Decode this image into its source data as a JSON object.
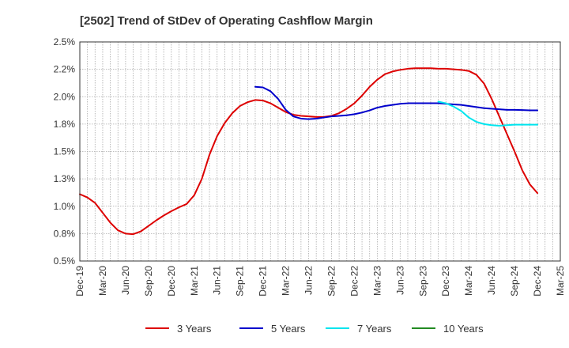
{
  "chart_data": {
    "type": "line",
    "title": "[2502]  Trend of StDev of Operating Cashflow Margin",
    "xlabel": "",
    "ylabel": "",
    "ylim": [
      0.5,
      2.5
    ],
    "y_ticks": [
      0.5,
      0.75,
      1.0,
      1.25,
      1.5,
      1.75,
      2.0,
      2.25,
      2.5
    ],
    "y_tick_labels": [
      "0.5%",
      "0.8%",
      "1.0%",
      "1.3%",
      "1.5%",
      "1.8%",
      "2.0%",
      "2.2%",
      "2.5%"
    ],
    "x_range": [
      "2019-12",
      "2025-03"
    ],
    "x_tick_labels": [
      "Dec-19",
      "Mar-20",
      "Jun-20",
      "Sep-20",
      "Dec-20",
      "Mar-21",
      "Jun-21",
      "Sep-21",
      "Dec-21",
      "Mar-22",
      "Jun-22",
      "Sep-22",
      "Dec-22",
      "Mar-23",
      "Jun-23",
      "Sep-23",
      "Dec-23",
      "Mar-24",
      "Jun-24",
      "Sep-24",
      "Dec-24",
      "Mar-25"
    ],
    "grid": true,
    "legend_position": "bottom",
    "series": [
      {
        "name": "3 Years",
        "color": "#dd0000",
        "points": [
          [
            "2019-12",
            1.11
          ],
          [
            "2020-01",
            1.08
          ],
          [
            "2020-02",
            1.03
          ],
          [
            "2020-03",
            0.94
          ],
          [
            "2020-04",
            0.85
          ],
          [
            "2020-05",
            0.78
          ],
          [
            "2020-06",
            0.75
          ],
          [
            "2020-07",
            0.745
          ],
          [
            "2020-08",
            0.77
          ],
          [
            "2020-09",
            0.82
          ],
          [
            "2020-10",
            0.87
          ],
          [
            "2020-11",
            0.915
          ],
          [
            "2020-12",
            0.955
          ],
          [
            "2021-01",
            0.99
          ],
          [
            "2021-02",
            1.02
          ],
          [
            "2021-03",
            1.1
          ],
          [
            "2021-04",
            1.25
          ],
          [
            "2021-05",
            1.47
          ],
          [
            "2021-06",
            1.64
          ],
          [
            "2021-07",
            1.76
          ],
          [
            "2021-08",
            1.85
          ],
          [
            "2021-09",
            1.915
          ],
          [
            "2021-10",
            1.95
          ],
          [
            "2021-11",
            1.97
          ],
          [
            "2021-12",
            1.965
          ],
          [
            "2022-01",
            1.94
          ],
          [
            "2022-02",
            1.9
          ],
          [
            "2022-03",
            1.86
          ],
          [
            "2022-04",
            1.835
          ],
          [
            "2022-05",
            1.825
          ],
          [
            "2022-06",
            1.82
          ],
          [
            "2022-07",
            1.815
          ],
          [
            "2022-08",
            1.815
          ],
          [
            "2022-09",
            1.825
          ],
          [
            "2022-10",
            1.85
          ],
          [
            "2022-11",
            1.89
          ],
          [
            "2022-12",
            1.94
          ],
          [
            "2023-01",
            2.01
          ],
          [
            "2023-02",
            2.09
          ],
          [
            "2023-03",
            2.155
          ],
          [
            "2023-04",
            2.205
          ],
          [
            "2023-05",
            2.23
          ],
          [
            "2023-06",
            2.245
          ],
          [
            "2023-07",
            2.255
          ],
          [
            "2023-08",
            2.26
          ],
          [
            "2023-09",
            2.26
          ],
          [
            "2023-10",
            2.26
          ],
          [
            "2023-11",
            2.255
          ],
          [
            "2023-12",
            2.255
          ],
          [
            "2024-01",
            2.25
          ],
          [
            "2024-02",
            2.245
          ],
          [
            "2024-03",
            2.235
          ],
          [
            "2024-04",
            2.2
          ],
          [
            "2024-05",
            2.12
          ],
          [
            "2024-06",
            1.98
          ],
          [
            "2024-07",
            1.82
          ],
          [
            "2024-08",
            1.66
          ],
          [
            "2024-09",
            1.5
          ],
          [
            "2024-10",
            1.33
          ],
          [
            "2024-11",
            1.2
          ],
          [
            "2024-12",
            1.12
          ]
        ]
      },
      {
        "name": "5 Years",
        "color": "#0000cc",
        "points": [
          [
            "2021-11",
            2.09
          ],
          [
            "2021-12",
            2.085
          ],
          [
            "2022-01",
            2.05
          ],
          [
            "2022-02",
            1.98
          ],
          [
            "2022-03",
            1.88
          ],
          [
            "2022-04",
            1.82
          ],
          [
            "2022-05",
            1.8
          ],
          [
            "2022-06",
            1.795
          ],
          [
            "2022-07",
            1.8
          ],
          [
            "2022-08",
            1.81
          ],
          [
            "2022-09",
            1.82
          ],
          [
            "2022-10",
            1.825
          ],
          [
            "2022-11",
            1.83
          ],
          [
            "2022-12",
            1.84
          ],
          [
            "2023-01",
            1.855
          ],
          [
            "2023-02",
            1.875
          ],
          [
            "2023-03",
            1.9
          ],
          [
            "2023-04",
            1.915
          ],
          [
            "2023-05",
            1.925
          ],
          [
            "2023-06",
            1.935
          ],
          [
            "2023-07",
            1.94
          ],
          [
            "2023-08",
            1.94
          ],
          [
            "2023-09",
            1.94
          ],
          [
            "2023-10",
            1.94
          ],
          [
            "2023-11",
            1.94
          ],
          [
            "2023-12",
            1.935
          ],
          [
            "2024-01",
            1.93
          ],
          [
            "2024-02",
            1.925
          ],
          [
            "2024-03",
            1.915
          ],
          [
            "2024-04",
            1.905
          ],
          [
            "2024-05",
            1.895
          ],
          [
            "2024-06",
            1.89
          ],
          [
            "2024-07",
            1.885
          ],
          [
            "2024-08",
            1.88
          ],
          [
            "2024-09",
            1.88
          ],
          [
            "2024-10",
            1.878
          ],
          [
            "2024-11",
            1.875
          ],
          [
            "2024-12",
            1.875
          ]
        ]
      },
      {
        "name": "7 Years",
        "color": "#00e5ee",
        "points": [
          [
            "2023-11",
            1.955
          ],
          [
            "2023-12",
            1.94
          ],
          [
            "2024-01",
            1.91
          ],
          [
            "2024-02",
            1.87
          ],
          [
            "2024-03",
            1.81
          ],
          [
            "2024-04",
            1.77
          ],
          [
            "2024-05",
            1.75
          ],
          [
            "2024-06",
            1.74
          ],
          [
            "2024-07",
            1.735
          ],
          [
            "2024-08",
            1.74
          ],
          [
            "2024-09",
            1.745
          ],
          [
            "2024-10",
            1.745
          ],
          [
            "2024-11",
            1.745
          ],
          [
            "2024-12",
            1.745
          ]
        ]
      },
      {
        "name": "10 Years",
        "color": "#228b22",
        "points": []
      }
    ]
  }
}
